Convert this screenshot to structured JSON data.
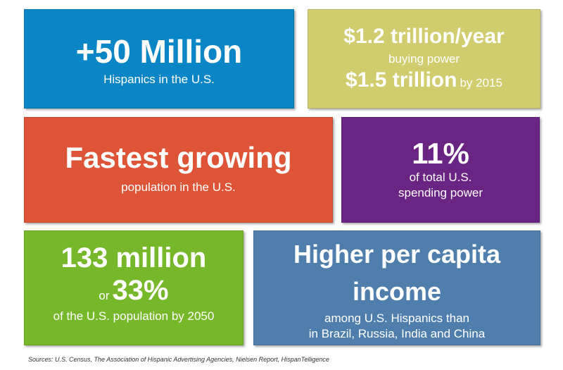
{
  "tiles": {
    "hispanics": {
      "headline": "+50 Million",
      "caption": "Hispanics in the U.S."
    },
    "buying_power": {
      "headline": "$1.2 trillion/year",
      "caption": "buying power",
      "headline2": "$1.5 trillion",
      "suffix": "by 2015"
    },
    "fastest_growing": {
      "headline": "Fastest growing",
      "caption": "population in the U.S."
    },
    "spending_power": {
      "headline": "11%",
      "caption_line1": "of total U.S.",
      "caption_line2": "spending power"
    },
    "projection": {
      "headline": "133 million",
      "or_label": "or",
      "percent": "33%",
      "caption": "of the U.S. population by 2050"
    },
    "income": {
      "headline_line1": "Higher per capita",
      "headline_line2": "income",
      "caption_line1": "among U.S. Hispanics than",
      "caption_line2": "in Brazil, Russia, India and China"
    }
  },
  "colors": {
    "blue": "#0a86c6",
    "khaki": "#d1cc6e",
    "orange": "#de5436",
    "purple": "#6a2483",
    "green": "#76b82a",
    "steel_blue": "#4f7eac"
  },
  "footer": {
    "sources": "Sources: U.S. Census, The Association of Hispanic Advertising Agencies, Nielsen Report, HispanTelligence"
  }
}
